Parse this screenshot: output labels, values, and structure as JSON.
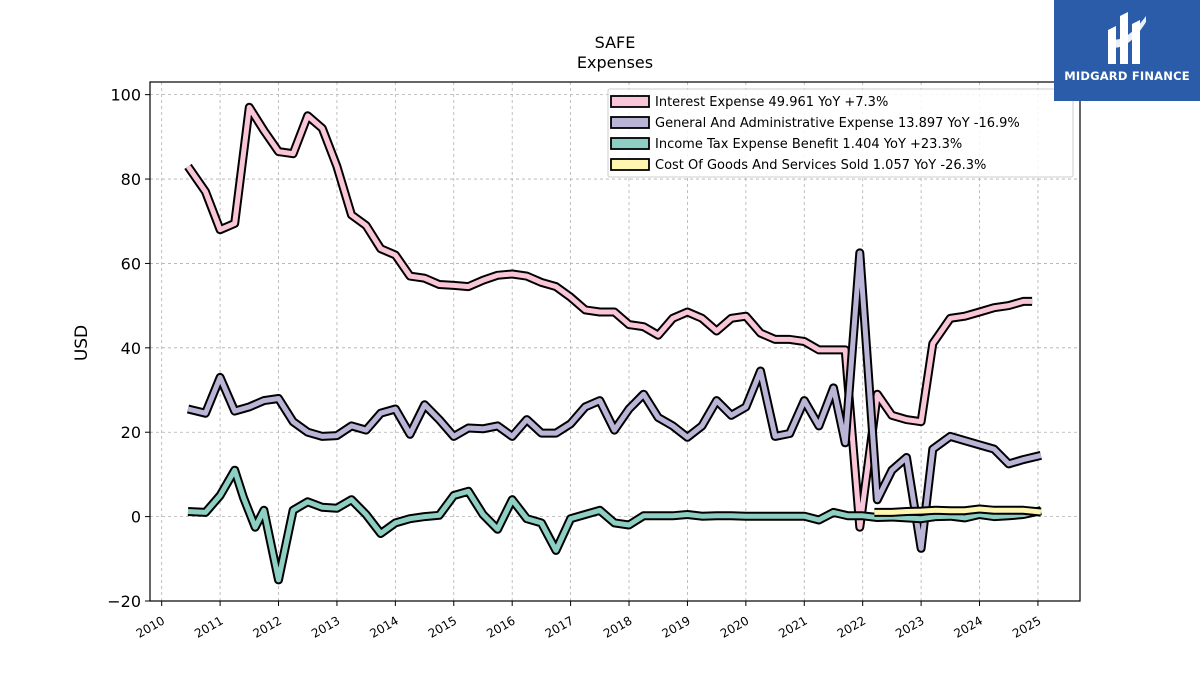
{
  "logo": {
    "text": "MIDGARD FINANCE"
  },
  "chart_data": {
    "type": "line",
    "title": "SAFE",
    "subtitle": "Expenses",
    "ylabel": "USD",
    "xlabel": "",
    "xlim": [
      2009.8,
      2025.72
    ],
    "ylim": [
      -20,
      103
    ],
    "grid": true,
    "legend_position": "top-right",
    "x_ticks": [
      "2010",
      "2011",
      "2012",
      "2013",
      "2014",
      "2015",
      "2016",
      "2017",
      "2018",
      "2019",
      "2020",
      "2021",
      "2022",
      "2023",
      "2024",
      "2025"
    ],
    "y_ticks": [
      "−20",
      "0",
      "20",
      "40",
      "60",
      "80",
      "100"
    ],
    "series": [
      {
        "name": "Interest Expense",
        "legend_label": "Interest Expense  49.961 YoY +7.3%",
        "color": "#f9c5d9",
        "x": [
          2010.45,
          2010.75,
          2011.0,
          2011.25,
          2011.5,
          2011.75,
          2012.0,
          2012.25,
          2012.5,
          2012.75,
          2013.0,
          2013.25,
          2013.5,
          2013.75,
          2014.0,
          2014.25,
          2014.5,
          2014.75,
          2015.0,
          2015.25,
          2015.5,
          2015.75,
          2016.0,
          2016.25,
          2016.5,
          2016.75,
          2017.0,
          2017.25,
          2017.5,
          2017.75,
          2018.0,
          2018.25,
          2018.5,
          2018.75,
          2019.0,
          2019.25,
          2019.5,
          2019.75,
          2020.0,
          2020.25,
          2020.5,
          2020.75,
          2021.0,
          2021.25,
          2021.5,
          2021.7,
          2021.95,
          2022.25,
          2022.5,
          2022.75,
          2023.0,
          2023.2,
          2023.5,
          2023.75,
          2024.0,
          2024.25,
          2024.5,
          2024.75,
          2024.9
        ],
        "values": [
          83,
          77,
          68,
          69.5,
          97,
          91.5,
          86.5,
          86,
          95,
          92,
          83,
          71.5,
          69,
          63.5,
          62,
          57,
          56.5,
          55,
          54.8,
          54.5,
          56,
          57.2,
          57.5,
          57,
          55.5,
          54.5,
          52,
          49,
          48.5,
          48.5,
          45.5,
          45,
          43,
          47,
          48.5,
          47,
          44,
          47,
          47.5,
          43.5,
          42,
          42,
          41.5,
          39.5,
          39.5,
          39.5,
          -2.5,
          29,
          24,
          23,
          22.5,
          41,
          47,
          47.5,
          48.5,
          49.5,
          50,
          51,
          51
        ]
      },
      {
        "name": "General And Administrative Expense",
        "legend_label": "General And Administrative Expense  13.897 YoY -16.9%",
        "color": "#bab4d6",
        "x": [
          2010.45,
          2010.75,
          2011.0,
          2011.25,
          2011.5,
          2011.75,
          2012.0,
          2012.25,
          2012.5,
          2012.75,
          2013.0,
          2013.25,
          2013.5,
          2013.75,
          2014.0,
          2014.25,
          2014.5,
          2014.75,
          2015.0,
          2015.25,
          2015.5,
          2015.75,
          2016.0,
          2016.25,
          2016.5,
          2016.75,
          2017.0,
          2017.25,
          2017.5,
          2017.75,
          2018.0,
          2018.25,
          2018.5,
          2018.75,
          2019.0,
          2019.25,
          2019.5,
          2019.75,
          2020.0,
          2020.25,
          2020.5,
          2020.75,
          2021.0,
          2021.25,
          2021.5,
          2021.7,
          2021.95,
          2022.25,
          2022.5,
          2022.75,
          2023.0,
          2023.2,
          2023.5,
          2023.75,
          2024.0,
          2024.25,
          2024.5,
          2024.75,
          2025.05
        ],
        "values": [
          25.5,
          24.5,
          33,
          25,
          26,
          27.5,
          28,
          22.5,
          20,
          19,
          19.2,
          21.5,
          20.5,
          24.5,
          25.5,
          19.5,
          26.5,
          23,
          19,
          21,
          20.8,
          21.5,
          19,
          23,
          19.8,
          19.8,
          22,
          26,
          27.5,
          20.5,
          25.5,
          29,
          23.5,
          21.5,
          18.8,
          21.5,
          27.5,
          24,
          26,
          34.5,
          19,
          19.7,
          27.5,
          21.5,
          30.5,
          17.5,
          62.5,
          4,
          11,
          14,
          -7.5,
          16,
          19,
          18,
          17,
          16,
          12.5,
          13.5,
          14.5
        ]
      },
      {
        "name": "Income Tax Expense Benefit",
        "legend_label": "Income Tax Expense Benefit  1.404 YoY +23.3%",
        "color": "#8ecfc3",
        "x": [
          2010.45,
          2010.75,
          2011.0,
          2011.25,
          2011.4,
          2011.6,
          2011.75,
          2012.0,
          2012.25,
          2012.5,
          2012.75,
          2013.0,
          2013.25,
          2013.5,
          2013.75,
          2014.0,
          2014.25,
          2014.5,
          2014.75,
          2015.0,
          2015.25,
          2015.5,
          2015.75,
          2016.0,
          2016.25,
          2016.5,
          2016.75,
          2017.0,
          2017.25,
          2017.5,
          2017.75,
          2018.0,
          2018.25,
          2018.5,
          2018.75,
          2019.0,
          2019.25,
          2019.5,
          2019.75,
          2020.0,
          2020.25,
          2020.5,
          2020.75,
          2021.0,
          2021.25,
          2021.5,
          2021.75,
          2022.0,
          2022.25,
          2022.5,
          2022.75,
          2023.0,
          2023.25,
          2023.5,
          2023.75,
          2024.0,
          2024.25,
          2024.5,
          2024.75,
          2025.05
        ],
        "values": [
          1.2,
          1,
          5,
          11,
          4.5,
          -2.5,
          1.5,
          -15,
          1.5,
          3.5,
          2.2,
          2,
          4,
          0.5,
          -4,
          -1.5,
          -0.5,
          0,
          0.3,
          5,
          6,
          0.5,
          -3,
          4,
          -0.5,
          -1.5,
          -8,
          -0.5,
          0.5,
          1.5,
          -1.5,
          -2,
          0.2,
          0.2,
          0.2,
          0.5,
          0.1,
          0.2,
          0.2,
          0.1,
          0.1,
          0.1,
          0.1,
          0.1,
          -0.8,
          1,
          0.2,
          0.2,
          -0.2,
          -0.1,
          -0.3,
          -0.5,
          0,
          0.1,
          -0.3,
          0.5,
          0,
          0.2,
          0.5,
          1.4
        ]
      },
      {
        "name": "Cost Of Goods And Services Sold",
        "legend_label": "Cost Of Goods And Services Sold  1.057 YoY -26.3%",
        "color": "#fdf5b0",
        "x": [
          2022.2,
          2022.5,
          2022.75,
          2023.0,
          2023.25,
          2023.5,
          2023.75,
          2024.0,
          2024.25,
          2024.5,
          2024.75,
          2025.05
        ],
        "values": [
          1,
          1,
          1.2,
          1.3,
          1.5,
          1.4,
          1.4,
          1.8,
          1.5,
          1.5,
          1.5,
          1.1
        ]
      }
    ]
  }
}
